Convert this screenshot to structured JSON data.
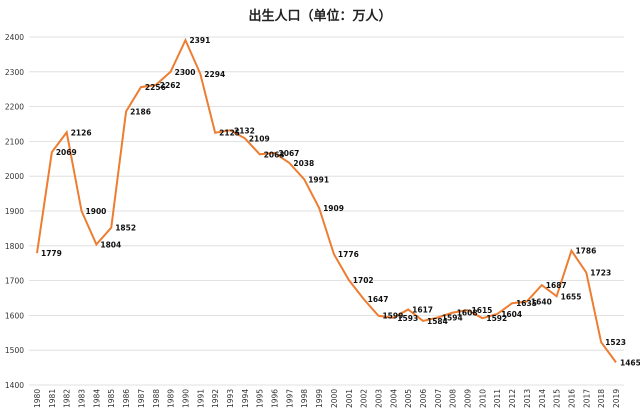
{
  "chart_data": {
    "type": "line",
    "title": "出生人口（单位：万人）",
    "categories": [
      "1980",
      "1981",
      "1982",
      "1983",
      "1984",
      "1985",
      "1986",
      "1987",
      "1988",
      "1989",
      "1990",
      "1991",
      "1992",
      "1993",
      "1994",
      "1995",
      "1996",
      "1997",
      "1998",
      "1999",
      "2000",
      "2001",
      "2002",
      "2003",
      "2004",
      "2005",
      "2006",
      "2007",
      "2008",
      "2009",
      "2010",
      "2011",
      "2012",
      "2013",
      "2014",
      "2015",
      "2016",
      "2017",
      "2018",
      "2019"
    ],
    "values": [
      1779,
      2069,
      2126,
      1900,
      1804,
      1852,
      2186,
      2256,
      2262,
      2300,
      2391,
      2294,
      2125,
      2132,
      2109,
      2063,
      2067,
      2038,
      1991,
      1909,
      1776,
      1702,
      1647,
      1599,
      1593,
      1617,
      1584,
      1594,
      1608,
      1615,
      1592,
      1604,
      1635,
      1640,
      1687,
      1655,
      1786,
      1723,
      1523,
      1465
    ],
    "yticks": [
      "1400",
      "1500",
      "1600",
      "1700",
      "1800",
      "1900",
      "2000",
      "2100",
      "2200",
      "2300",
      "2400"
    ],
    "ylim": [
      1400,
      2400
    ],
    "grid": true,
    "line_color": "#ED7D31",
    "grid_color": "#D9D9D9"
  }
}
